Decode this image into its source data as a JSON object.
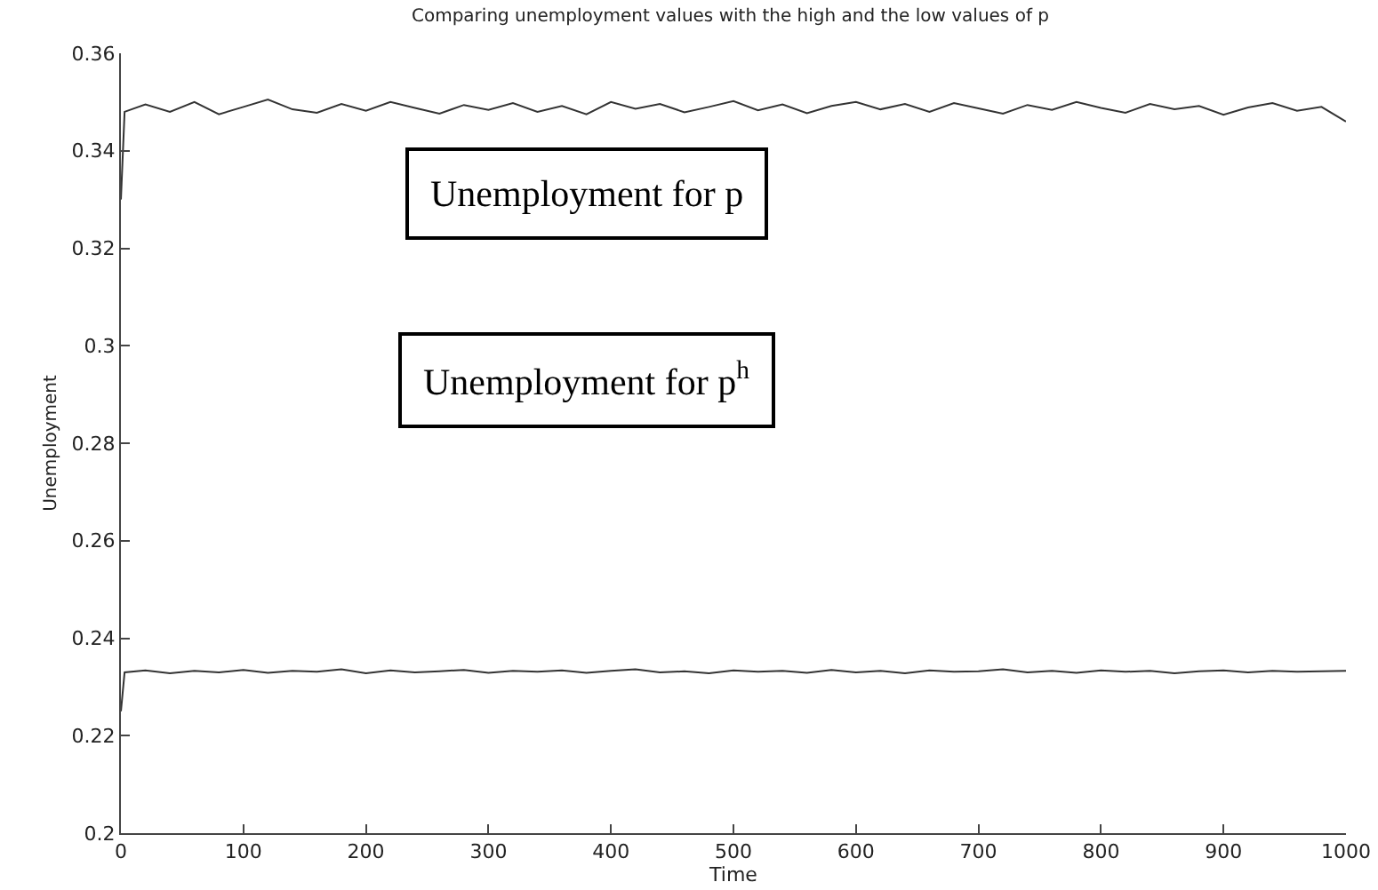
{
  "chart_data": {
    "type": "line",
    "title": "Comparing unemployment values with the high and the low values of p",
    "xlabel": "Time",
    "ylabel": "Unemployment",
    "x": [
      0,
      3,
      20,
      40,
      60,
      80,
      100,
      120,
      140,
      160,
      180,
      200,
      220,
      240,
      260,
      280,
      300,
      320,
      340,
      360,
      380,
      400,
      420,
      440,
      460,
      480,
      500,
      520,
      540,
      560,
      580,
      600,
      620,
      640,
      660,
      680,
      700,
      720,
      740,
      760,
      780,
      800,
      820,
      840,
      860,
      880,
      900,
      920,
      940,
      960,
      980,
      1000
    ],
    "series": [
      {
        "color": "#333333",
        "values": [
          0.33,
          0.348,
          0.3495,
          0.348,
          0.35,
          0.3475,
          0.349,
          0.3505,
          0.3485,
          0.3478,
          0.3496,
          0.3482,
          0.35,
          0.3488,
          0.3476,
          0.3494,
          0.3484,
          0.3498,
          0.348,
          0.3492,
          0.3475,
          0.35,
          0.3486,
          0.3496,
          0.3479,
          0.349,
          0.3502,
          0.3483,
          0.3495,
          0.3477,
          0.3492,
          0.35,
          0.3485,
          0.3496,
          0.348,
          0.3498,
          0.3487,
          0.3476,
          0.3494,
          0.3484,
          0.35,
          0.3488,
          0.3478,
          0.3496,
          0.3485,
          0.3492,
          0.3474,
          0.3489,
          0.3498,
          0.3482,
          0.349,
          0.346
        ]
      },
      {
        "color": "#333333",
        "values": [
          0.225,
          0.233,
          0.2334,
          0.2328,
          0.2333,
          0.233,
          0.2335,
          0.2329,
          0.2333,
          0.2331,
          0.2336,
          0.2328,
          0.2334,
          0.233,
          0.2332,
          0.2335,
          0.2329,
          0.2333,
          0.2331,
          0.2334,
          0.2329,
          0.2333,
          0.2336,
          0.233,
          0.2332,
          0.2328,
          0.2334,
          0.2331,
          0.2333,
          0.2329,
          0.2335,
          0.233,
          0.2333,
          0.2328,
          0.2334,
          0.2331,
          0.2332,
          0.2336,
          0.233,
          0.2333,
          0.2329,
          0.2334,
          0.2331,
          0.2333,
          0.2328,
          0.2332,
          0.2334,
          0.233,
          0.2333,
          0.2331,
          0.2332,
          0.2333
        ]
      }
    ],
    "xlim": [
      0,
      1000
    ],
    "xticks": [
      0,
      100,
      200,
      300,
      400,
      500,
      600,
      700,
      800,
      900,
      1000
    ],
    "ylim": [
      0.2,
      0.36
    ],
    "yticks": [
      0.2,
      0.22,
      0.24,
      0.26,
      0.28,
      0.3,
      0.32,
      0.34,
      0.36
    ],
    "annotations": [
      "Unemployment for p",
      "Unemployment for p$^{h}$"
    ],
    "grid": false,
    "marker": "none",
    "line_style": "solid"
  }
}
